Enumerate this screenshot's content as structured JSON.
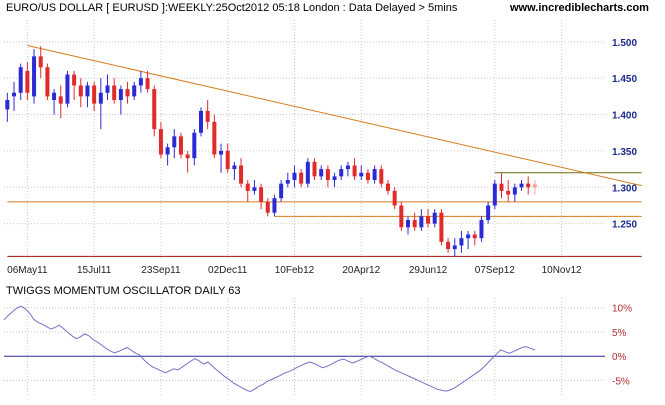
{
  "header": {
    "title": "EURO/US DOLLAR [ EURUSD ]:WEEKLY:25Oct2012 05:18 London : Data Delayed > 5mins",
    "site": "www.incrediblecharts.com"
  },
  "oscillator_panel": {
    "title": "TWIGGS MOMENTUM OSCILLATOR DAILY 63"
  },
  "colors": {
    "up": "#2b2bd6",
    "down": "#e02b2b",
    "last": "#f0a0a0",
    "trendline": "#d97b1a",
    "support": "#d97b1a",
    "lower_line": "#a01010",
    "resistance": "#6b6b10",
    "oscillator": "#7373c8",
    "zero_line": "#2b2ba0",
    "grid": "#c8c8c8"
  },
  "chart_data": [
    {
      "type": "candlestick",
      "title": "EURO/US DOLLAR [ EURUSD ]:WEEKLY",
      "interval": "weekly",
      "ylim": [
        1.2,
        1.53
      ],
      "y_ticks": [
        "1.500",
        "1.450",
        "1.400",
        "1.350",
        "1.300",
        "1.250"
      ],
      "y_tick_values": [
        1.5,
        1.45,
        1.4,
        1.35,
        1.3,
        1.25
      ],
      "x_tick_labels": [
        "06May11",
        "15Jul11",
        "23Sep11",
        "02Dec11",
        "10Feb12",
        "20Apr12",
        "29Jun12",
        "07Sep12",
        "10Nov12"
      ],
      "x_tick_index": [
        3,
        13,
        23,
        33,
        43,
        53,
        63,
        73,
        83
      ],
      "grid": true,
      "ohlc_columns": [
        "open",
        "high",
        "low",
        "close"
      ],
      "ohlc": [
        [
          1.407,
          1.43,
          1.39,
          1.42
        ],
        [
          1.425,
          1.445,
          1.405,
          1.43
        ],
        [
          1.43,
          1.47,
          1.42,
          1.465
        ],
        [
          1.46,
          1.472,
          1.42,
          1.43
        ],
        [
          1.425,
          1.49,
          1.415,
          1.48
        ],
        [
          1.48,
          1.494,
          1.45,
          1.465
        ],
        [
          1.465,
          1.47,
          1.42,
          1.425
        ],
        [
          1.42,
          1.435,
          1.4,
          1.43
        ],
        [
          1.425,
          1.44,
          1.395,
          1.415
        ],
        [
          1.415,
          1.46,
          1.41,
          1.455
        ],
        [
          1.455,
          1.46,
          1.42,
          1.44
        ],
        [
          1.44,
          1.45,
          1.41,
          1.425
        ],
        [
          1.425,
          1.445,
          1.41,
          1.44
        ],
        [
          1.44,
          1.445,
          1.405,
          1.415
        ],
        [
          1.415,
          1.45,
          1.38,
          1.43
        ],
        [
          1.43,
          1.455,
          1.42,
          1.44
        ],
        [
          1.44,
          1.45,
          1.415,
          1.42
        ],
        [
          1.42,
          1.44,
          1.4,
          1.435
        ],
        [
          1.435,
          1.445,
          1.415,
          1.425
        ],
        [
          1.425,
          1.445,
          1.42,
          1.44
        ],
        [
          1.44,
          1.46,
          1.43,
          1.45
        ],
        [
          1.45,
          1.46,
          1.43,
          1.435
        ],
        [
          1.435,
          1.44,
          1.37,
          1.38
        ],
        [
          1.38,
          1.39,
          1.34,
          1.345
        ],
        [
          1.345,
          1.36,
          1.33,
          1.355
        ],
        [
          1.355,
          1.38,
          1.34,
          1.37
        ],
        [
          1.37,
          1.375,
          1.34,
          1.345
        ],
        [
          1.345,
          1.35,
          1.32,
          1.34
        ],
        [
          1.34,
          1.38,
          1.33,
          1.375
        ],
        [
          1.375,
          1.41,
          1.37,
          1.405
        ],
        [
          1.405,
          1.42,
          1.38,
          1.39
        ],
        [
          1.39,
          1.4,
          1.34,
          1.345
        ],
        [
          1.345,
          1.36,
          1.32,
          1.35
        ],
        [
          1.35,
          1.36,
          1.32,
          1.325
        ],
        [
          1.325,
          1.335,
          1.31,
          1.33
        ],
        [
          1.33,
          1.34,
          1.3,
          1.305
        ],
        [
          1.305,
          1.31,
          1.28,
          1.295
        ],
        [
          1.295,
          1.31,
          1.29,
          1.3
        ],
        [
          1.3,
          1.305,
          1.27,
          1.28
        ],
        [
          1.28,
          1.285,
          1.26,
          1.265
        ],
        [
          1.265,
          1.29,
          1.26,
          1.285
        ],
        [
          1.285,
          1.31,
          1.28,
          1.305
        ],
        [
          1.305,
          1.32,
          1.3,
          1.31
        ],
        [
          1.31,
          1.33,
          1.3,
          1.32
        ],
        [
          1.32,
          1.325,
          1.3,
          1.305
        ],
        [
          1.305,
          1.34,
          1.3,
          1.335
        ],
        [
          1.335,
          1.34,
          1.31,
          1.315
        ],
        [
          1.315,
          1.33,
          1.31,
          1.325
        ],
        [
          1.325,
          1.33,
          1.3,
          1.31
        ],
        [
          1.31,
          1.32,
          1.3,
          1.315
        ],
        [
          1.315,
          1.33,
          1.31,
          1.325
        ],
        [
          1.325,
          1.335,
          1.315,
          1.33
        ],
        [
          1.33,
          1.34,
          1.31,
          1.315
        ],
        [
          1.315,
          1.33,
          1.31,
          1.32
        ],
        [
          1.32,
          1.325,
          1.305,
          1.31
        ],
        [
          1.31,
          1.33,
          1.305,
          1.325
        ],
        [
          1.325,
          1.33,
          1.3,
          1.305
        ],
        [
          1.305,
          1.31,
          1.29,
          1.295
        ],
        [
          1.295,
          1.3,
          1.27,
          1.275
        ],
        [
          1.275,
          1.28,
          1.24,
          1.245
        ],
        [
          1.245,
          1.26,
          1.235,
          1.255
        ],
        [
          1.255,
          1.265,
          1.24,
          1.245
        ],
        [
          1.245,
          1.27,
          1.24,
          1.26
        ],
        [
          1.26,
          1.27,
          1.245,
          1.25
        ],
        [
          1.25,
          1.27,
          1.245,
          1.265
        ],
        [
          1.265,
          1.27,
          1.22,
          1.225
        ],
        [
          1.225,
          1.23,
          1.21,
          1.215
        ],
        [
          1.215,
          1.23,
          1.205,
          1.22
        ],
        [
          1.22,
          1.24,
          1.21,
          1.23
        ],
        [
          1.23,
          1.24,
          1.215,
          1.235
        ],
        [
          1.235,
          1.24,
          1.22,
          1.23
        ],
        [
          1.23,
          1.26,
          1.225,
          1.255
        ],
        [
          1.255,
          1.28,
          1.25,
          1.275
        ],
        [
          1.275,
          1.31,
          1.27,
          1.305
        ],
        [
          1.305,
          1.32,
          1.285,
          1.295
        ],
        [
          1.295,
          1.31,
          1.28,
          1.29
        ],
        [
          1.29,
          1.305,
          1.28,
          1.3
        ],
        [
          1.3,
          1.31,
          1.295,
          1.305
        ],
        [
          1.305,
          1.315,
          1.29,
          1.3
        ],
        [
          1.3,
          1.31,
          1.29,
          1.304
        ]
      ],
      "trendline": [
        [
          3,
          1.495
        ],
        [
          89,
          1.305
        ]
      ],
      "horizontal_lines": [
        {
          "name": "resistance",
          "value": 1.32,
          "from_index": 73,
          "to_index": 89
        },
        {
          "name": "upper-support",
          "value": 1.28,
          "from_index": 0,
          "to_index": 89
        },
        {
          "name": "lower-support",
          "value": 1.26,
          "from_index": 40,
          "to_index": 89
        },
        {
          "name": "bottom-line",
          "value": 1.205,
          "from_index": 0,
          "to_index": 89
        }
      ]
    },
    {
      "type": "line",
      "title": "TWIGGS MOMENTUM OSCILLATOR DAILY 63",
      "ylim": [
        -8,
        12
      ],
      "y_ticks": [
        "10%",
        "5%",
        "0%",
        "-5%"
      ],
      "y_tick_values": [
        10,
        5,
        0,
        -5
      ],
      "zero_line": 0,
      "grid": true,
      "series": [
        {
          "values": [
            7.5,
            8.4,
            9.2,
            9.9,
            10.3,
            9.8,
            8.9,
            7.6,
            7.0,
            6.6,
            6.1,
            5.6,
            5.9,
            6.4,
            5.7,
            4.9,
            4.2,
            3.6,
            4.0,
            4.6,
            4.2,
            3.4,
            2.9,
            2.3,
            1.6,
            1.1,
            0.7,
            1.0,
            1.4,
            1.8,
            1.2,
            0.6,
            0.2,
            -0.8,
            -1.6,
            -2.2,
            -2.6,
            -3.0,
            -3.4,
            -3.0,
            -2.6,
            -2.8,
            -2.2,
            -1.6,
            -1.0,
            -0.5,
            -1.0,
            -1.6,
            -1.2,
            -2.0,
            -2.8,
            -3.5,
            -4.2,
            -4.8,
            -5.5,
            -6.0,
            -6.5,
            -7.0,
            -7.3,
            -6.8,
            -6.2,
            -5.8,
            -5.2,
            -4.8,
            -4.4,
            -4.0,
            -3.5,
            -3.2,
            -2.8,
            -2.3,
            -1.9,
            -1.5,
            -1.2,
            -1.5,
            -1.9,
            -2.4,
            -2.1,
            -1.7,
            -1.2,
            -0.8,
            -0.6,
            -1.0,
            -1.4,
            -1.1,
            -0.7,
            -0.3,
            0.0,
            -0.4,
            -0.9,
            -1.3,
            -1.8,
            -2.3,
            -2.8,
            -3.2,
            -3.6,
            -4.0,
            -4.4,
            -4.8,
            -5.2,
            -5.6,
            -6.0,
            -6.4,
            -6.8,
            -7.0,
            -7.2,
            -7.0,
            -6.6,
            -6.0,
            -5.4,
            -4.8,
            -4.2,
            -3.6,
            -3.0,
            -2.2,
            -1.3,
            -0.4,
            0.5,
            1.3,
            0.9,
            0.6,
            1.0,
            1.4,
            1.8,
            2.0,
            1.6,
            1.3
          ]
        }
      ]
    }
  ]
}
